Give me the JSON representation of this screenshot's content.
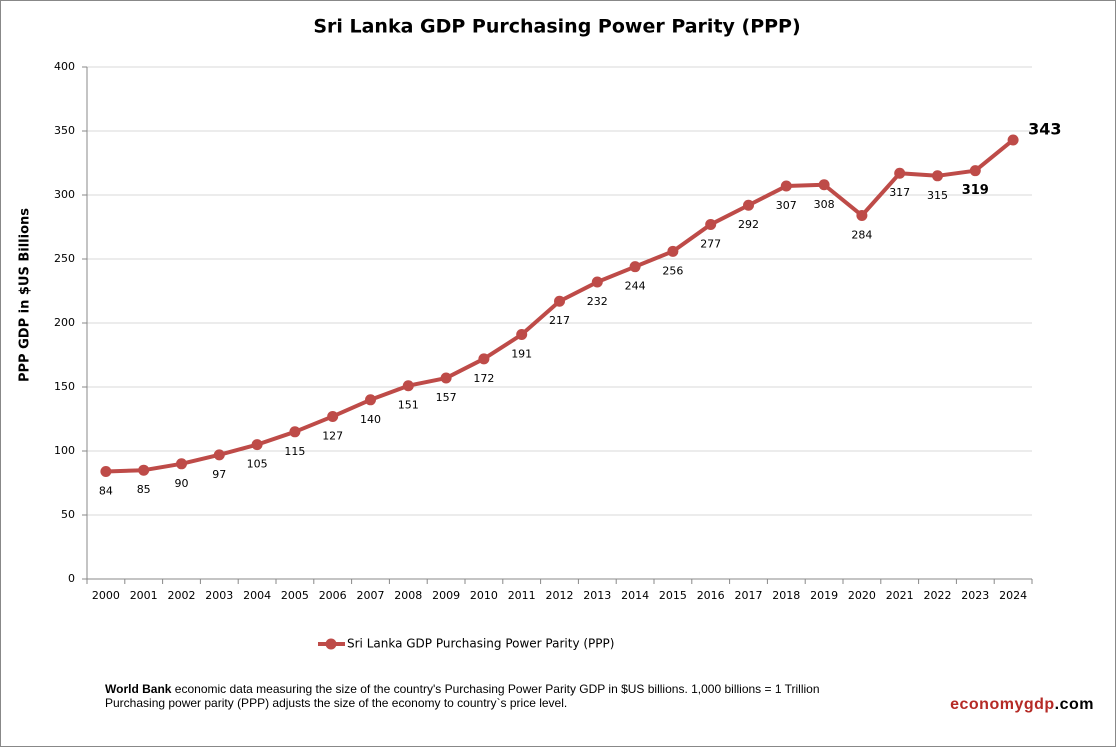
{
  "chart_data": {
    "type": "line",
    "title": "Sri Lanka GDP Purchasing Power Parity (PPP)",
    "y_label": "PPP GDP in $US Billions",
    "categories": [
      "2000",
      "2001",
      "2002",
      "2003",
      "2004",
      "2005",
      "2006",
      "2007",
      "2008",
      "2009",
      "2010",
      "2011",
      "2012",
      "2013",
      "2014",
      "2015",
      "2016",
      "2017",
      "2018",
      "2019",
      "2020",
      "2021",
      "2022",
      "2023",
      "2024"
    ],
    "series": [
      {
        "name": "Sri Lanka GDP Purchasing Power Parity (PPP)",
        "color": "#be4b48",
        "values": [
          84,
          85,
          90,
          97,
          105,
          115,
          127,
          140,
          151,
          157,
          172,
          191,
          217,
          232,
          244,
          256,
          277,
          292,
          307,
          308,
          284,
          317,
          315,
          319,
          343
        ]
      }
    ],
    "ylim": [
      0,
      400
    ],
    "yticks": [
      0,
      50,
      100,
      150,
      200,
      250,
      300,
      350,
      400
    ],
    "grid": true,
    "legend": "bottom"
  },
  "note": {
    "source": "World Bank",
    "line1": "economic data  measuring the size of the country's Purchasing Power Parity GDP in $US billions. 1,000 billions = 1 Trillion",
    "line2": "Purchasing power parity (PPP) adjusts the size of the economy to country`s price level."
  },
  "brand": {
    "name": "economygdp",
    "suffix": ".com"
  }
}
